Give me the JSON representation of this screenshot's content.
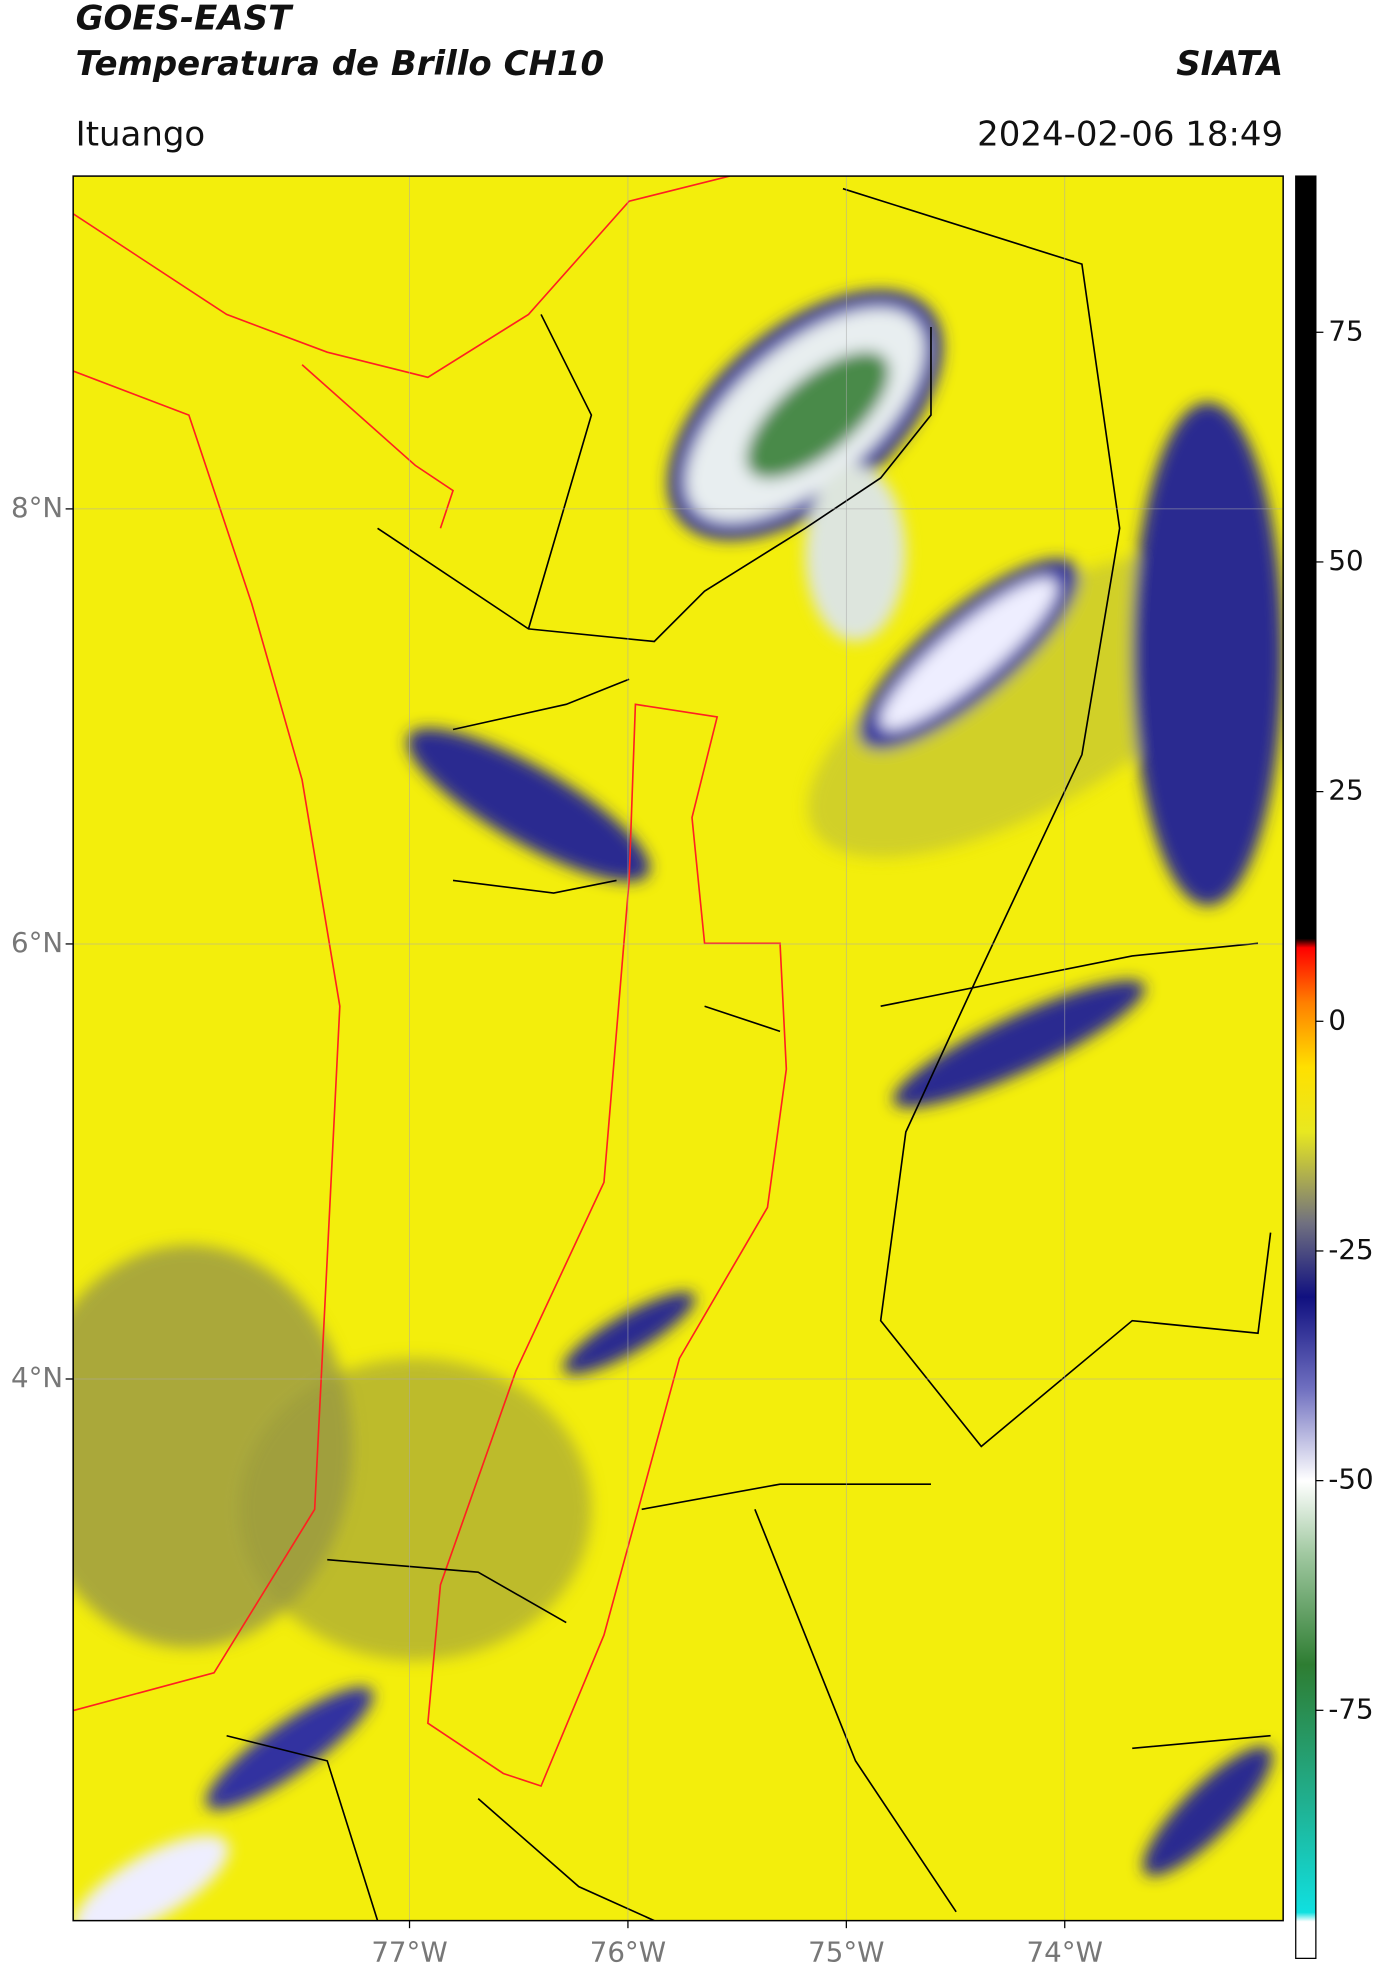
{
  "header": {
    "title": "GOES-EAST",
    "subtitle": "Temperatura de Brillo CH10",
    "org": "SIATA",
    "location": "Ituango",
    "datetime": "2024-02-06 18:49"
  },
  "map": {
    "xlim": [
      -78.54,
      -73.0
    ],
    "ylim": [
      1.51,
      9.53
    ],
    "xticks": [
      {
        "value": -77,
        "label": "77°W"
      },
      {
        "value": -76,
        "label": "76°W"
      },
      {
        "value": -75,
        "label": "75°W"
      },
      {
        "value": -74,
        "label": "74°W"
      }
    ],
    "yticks": [
      {
        "value": 8,
        "label": "8°N"
      },
      {
        "value": 6,
        "label": "6°N"
      },
      {
        "value": 4,
        "label": "4°N"
      }
    ],
    "grid": true,
    "background": "#f3ee0c"
  },
  "colorbar": {
    "lim": [
      -102,
      92
    ],
    "ticks": [
      75,
      50,
      25,
      0,
      -25,
      -50,
      -75
    ],
    "stops": [
      {
        "value": -102,
        "color": "#ffffff"
      },
      {
        "value": -98,
        "color": "#ffffff"
      },
      {
        "value": -97,
        "color": "#10e0e0"
      },
      {
        "value": -85,
        "color": "#20b090"
      },
      {
        "value": -70,
        "color": "#2e7d32"
      },
      {
        "value": -58,
        "color": "#a0c8a0"
      },
      {
        "value": -50,
        "color": "#ffffff"
      },
      {
        "value": -40,
        "color": "#7070c0"
      },
      {
        "value": -30,
        "color": "#101080"
      },
      {
        "value": -22,
        "color": "#707080"
      },
      {
        "value": -12,
        "color": "#e8e820"
      },
      {
        "value": -5,
        "color": "#ffe000"
      },
      {
        "value": 2,
        "color": "#ff8000"
      },
      {
        "value": 8,
        "color": "#ff0000"
      },
      {
        "value": 9,
        "color": "#000000"
      },
      {
        "value": 92,
        "color": "#000000"
      }
    ]
  }
}
